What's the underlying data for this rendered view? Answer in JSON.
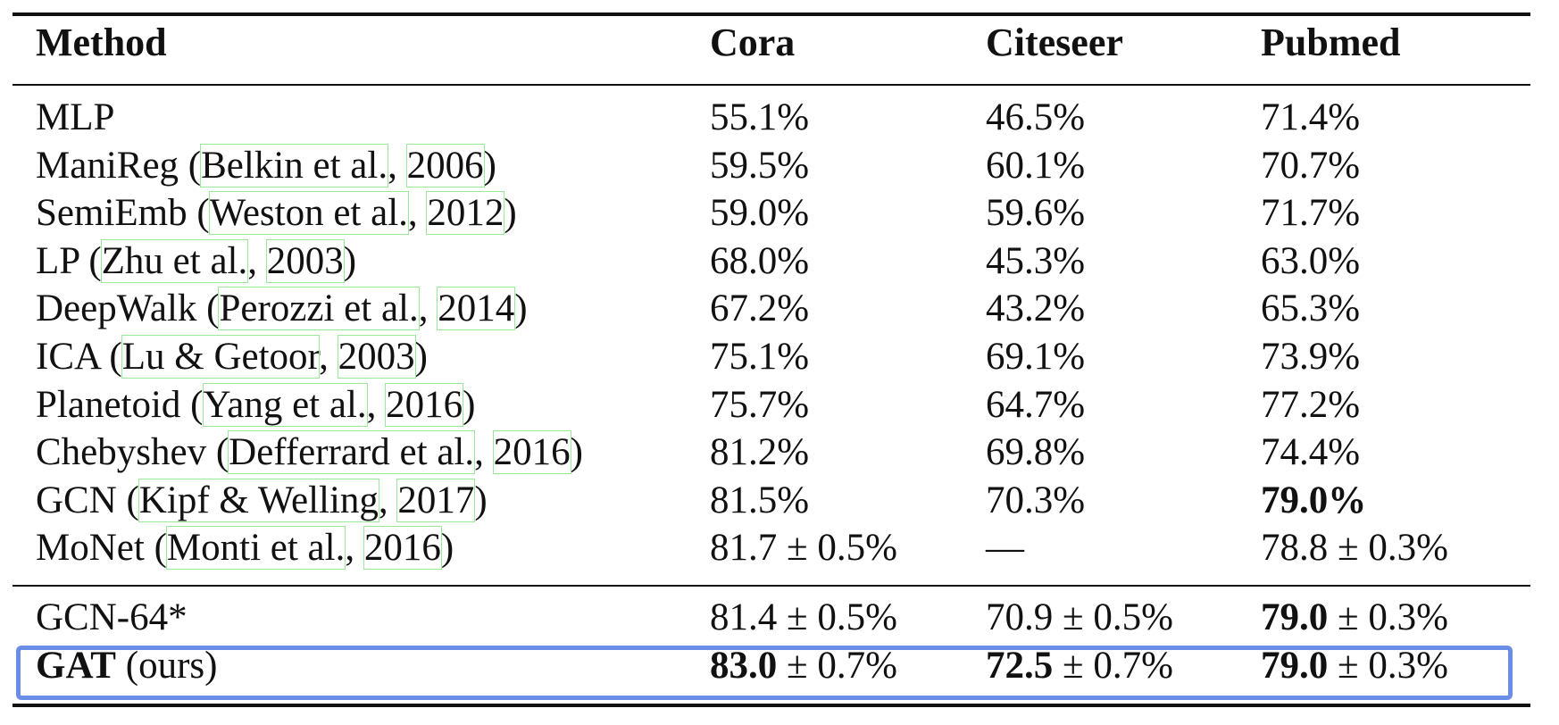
{
  "table": {
    "headers": [
      "Method",
      "Cora",
      "Citeseer",
      "Pubmed"
    ],
    "rows": [
      {
        "method": "MLP",
        "cite": null,
        "cora": "55.1%",
        "citeseer": "46.5%",
        "pubmed": "71.4%"
      },
      {
        "method": "ManiReg (",
        "cite": {
          "author": "Belkin et al.",
          "sep": ", ",
          "year": "2006"
        },
        "close": ")",
        "cora": "59.5%",
        "citeseer": "60.1%",
        "pubmed": "70.7%"
      },
      {
        "method": "SemiEmb (",
        "cite": {
          "author": "Weston et al.",
          "sep": ", ",
          "year": "2012"
        },
        "close": ")",
        "cora": "59.0%",
        "citeseer": "59.6%",
        "pubmed": "71.7%"
      },
      {
        "method": "LP (",
        "cite": {
          "author": "Zhu et al.",
          "sep": ", ",
          "year": "2003"
        },
        "close": ")",
        "cora": "68.0%",
        "citeseer": "45.3%",
        "pubmed": "63.0%"
      },
      {
        "method": "DeepWalk (",
        "cite": {
          "author": "Perozzi et al.",
          "sep": ", ",
          "year": "2014"
        },
        "close": ")",
        "cora": "67.2%",
        "citeseer": "43.2%",
        "pubmed": "65.3%"
      },
      {
        "method": "ICA (",
        "cite": {
          "author": "Lu & Getoor",
          "sep": ", ",
          "year": "2003"
        },
        "close": ")",
        "cora": "75.1%",
        "citeseer": "69.1%",
        "pubmed": "73.9%"
      },
      {
        "method": "Planetoid (",
        "cite": {
          "author": "Yang et al.",
          "sep": ", ",
          "year": "2016"
        },
        "close": ")",
        "cora": "75.7%",
        "citeseer": "64.7%",
        "pubmed": "77.2%"
      },
      {
        "method": "Chebyshev (",
        "cite": {
          "author": "Defferrard et al.",
          "sep": ", ",
          "year": "2016"
        },
        "close": ")",
        "cora": "81.2%",
        "citeseer": "69.8%",
        "pubmed": "74.4%"
      },
      {
        "method": "GCN (",
        "cite": {
          "author": "Kipf & Welling",
          "sep": ", ",
          "year": "2017"
        },
        "close": ")",
        "cora": "81.5%",
        "citeseer": "70.3%",
        "pubmed": "79.0%",
        "pubmed_bold": true
      },
      {
        "method": "MoNet (",
        "cite": {
          "author": "Monti et al.",
          "sep": ", ",
          "year": "2016"
        },
        "close": ")",
        "cora": "81.7 ± 0.5%",
        "citeseer": "—",
        "pubmed": "78.8 ± 0.3%"
      }
    ],
    "ours_rows": [
      {
        "method_bold": "",
        "method": "GCN-64*",
        "cora_bold": "81.4",
        "cora_rest": " ± 0.5%",
        "cora_b": false,
        "citeseer_bold": "70.9",
        "citeseer_rest": " ± 0.5%",
        "citeseer_b": false,
        "pubmed_bold": "79.0",
        "pubmed_rest": " ± 0.3%",
        "pubmed_b": true
      },
      {
        "method_bold": "GAT",
        "method": " (ours)",
        "cora_bold": "83.0",
        "cora_rest": " ± 0.7%",
        "cora_b": true,
        "citeseer_bold": "72.5",
        "citeseer_rest": " ± 0.7%",
        "citeseer_b": true,
        "pubmed_bold": "79.0",
        "pubmed_rest": " ± 0.3%",
        "pubmed_b": true
      }
    ],
    "highlight_color": "#6a8ee8",
    "citation_box_color": "#9be89b"
  }
}
